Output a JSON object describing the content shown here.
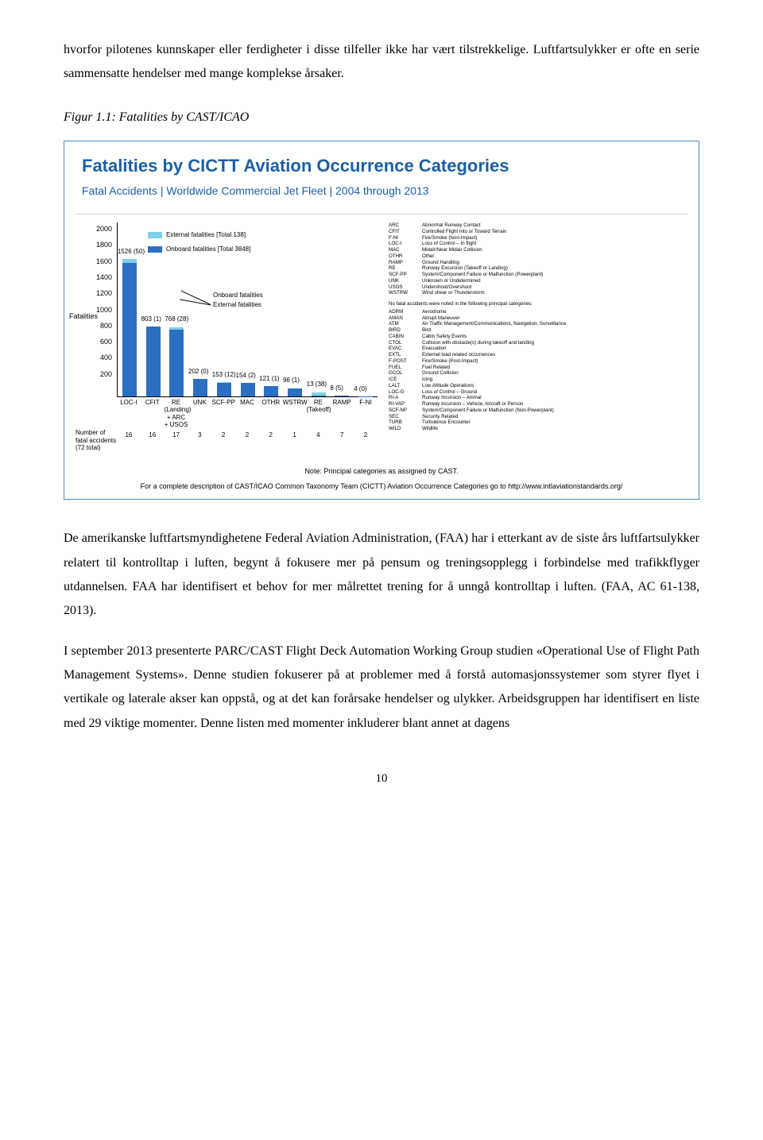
{
  "para1": "hvorfor pilotenes kunnskaper eller ferdigheter i disse tilfeller ikke har vært tilstrekkelige. Luftfartsulykker er ofte en serie sammensatte hendelser med mange komplekse årsaker.",
  "fig_caption": "Figur 1.1: Fatalities by CAST/ICAO",
  "chart": {
    "title": "Fatalities by CICTT Aviation Occurrence Categories",
    "subtitle": "Fatal Accidents | Worldwide Commercial Jet Fleet | 2004 through 2013",
    "ylabel": "Fatalities",
    "ymax": 2000,
    "ytick_step": 200,
    "legend": {
      "ext_label": "External fatalities [Total 138]",
      "onb_label": "Onboard fatalities [Total 3848]",
      "ext_color": "#7fd0e8",
      "onb_color": "#2b6fc2"
    },
    "annotation_onboard": "Onboard fatalities",
    "annotation_external": "External fatalities",
    "categories": [
      {
        "code": "LOC-I",
        "onboard": 1526,
        "external": 50,
        "accidents": 16
      },
      {
        "code": "CFIT",
        "onboard": 803,
        "external": 1,
        "accidents": 16
      },
      {
        "code": "RE\n(Landing)\n+ ARC\n+ USOS",
        "onboard": 768,
        "external": 28,
        "accidents": 17
      },
      {
        "code": "UNK",
        "onboard": 202,
        "external": 0,
        "accidents": 3
      },
      {
        "code": "SCF-PP",
        "onboard": 153,
        "external": 12,
        "accidents": 2
      },
      {
        "code": "MAC",
        "onboard": 154,
        "external": 2,
        "accidents": 2
      },
      {
        "code": "OTHR",
        "onboard": 121,
        "external": 1,
        "accidents": 2
      },
      {
        "code": "WSTRW",
        "onboard": 96,
        "external": 1,
        "accidents": 1
      },
      {
        "code": "RE\n(Takeoff)",
        "onboard": 13,
        "external": 38,
        "accidents": 4
      },
      {
        "code": "RAMP",
        "onboard": 8,
        "external": 5,
        "accidents": 7
      },
      {
        "code": "F-NI",
        "onboard": 4,
        "external": 0,
        "accidents": 2
      }
    ],
    "num_accidents_caption": "Number of\nfatal accidents\n(72 total)",
    "note": "Note: Principal categories as assigned by CAST.",
    "footer": "For a complete description of CAST/ICAO Common Taxonomy Team (CICTT) Aviation Occurrence Categories go to http://www.intlaviationstandards.org/",
    "abbr1": [
      [
        "ARC",
        "Abnormal Runway Contact"
      ],
      [
        "CFIT",
        "Controlled Flight Into or Toward Terrain"
      ],
      [
        "F-NI",
        "Fire/Smoke (Non-Impact)"
      ],
      [
        "LOC-I",
        "Loss of Control – In flight"
      ],
      [
        "MAC",
        "Midair/Near Midair Collision"
      ],
      [
        "OTHR",
        "Other"
      ],
      [
        "RAMP",
        "Ground Handling"
      ],
      [
        "RE",
        "Runway Excursion (Takeoff or Landing)"
      ],
      [
        "SCF-PP",
        "System/Component Failure or Malfunction (Powerplant)"
      ],
      [
        "UNK",
        "Unknown or Undetermined"
      ],
      [
        "USOS",
        "Undershoot/Overshoot"
      ],
      [
        "WSTRW",
        "Wind shear or Thunderstorm"
      ]
    ],
    "abbr2_intro": "No fatal accidents were noted in the following principal categories:",
    "abbr2": [
      [
        "ADRM",
        "Aerodrome"
      ],
      [
        "AMAN",
        "Abrupt Maneuver"
      ],
      [
        "ATM",
        "Air Traffic Management/Communications, Navigation, Surveillance"
      ],
      [
        "BIRD",
        "Bird"
      ],
      [
        "CABIN",
        "Cabin Safety Events"
      ],
      [
        "CTOL",
        "Collision with obstacle(s) during takeoff and landing"
      ],
      [
        "EVAC",
        "Evacuation"
      ],
      [
        "EXTL",
        "External load related occurrences"
      ],
      [
        "F-POST",
        "Fire/Smoke (Post-Impact)"
      ],
      [
        "FUEL",
        "Fuel Related"
      ],
      [
        "GCOL",
        "Ground Collision"
      ],
      [
        "ICE",
        "Icing"
      ],
      [
        "LALT",
        "Low Altitude Operations"
      ],
      [
        "LOC-G",
        "Loss of Control – Ground"
      ],
      [
        "RI-A",
        "Runway Incursion – Animal"
      ],
      [
        "RI-VAP",
        "Runway Incursion – Vehicle, Aircraft or Person"
      ],
      [
        "SCF-NP",
        "System/Component Failure or Malfunction (Non-Powerplant)"
      ],
      [
        "SEC",
        "Security Related"
      ],
      [
        "TURB",
        "Turbulence Encounter"
      ],
      [
        "WILD",
        "Wildlife"
      ]
    ]
  },
  "para2": "De amerikanske luftfartsmyndighetene Federal Aviation Administration, (FAA) har i etterkant av de siste års luftfartsulykker relatert til kontrolltap i luften, begynt å fokusere mer på pensum og treningsopplegg i forbindelse med trafikkflyger utdannelsen. FAA har identifisert et behov for mer målrettet trening for å unngå kontrolltap i luften. (FAA, AC 61-138, 2013).",
  "para3": "I september 2013 presenterte PARC/CAST Flight Deck Automation Working Group studien «Operational Use of Flight Path Management Systems». Denne studien fokuserer på at problemer med å forstå automasjonssystemer som styrer flyet i vertikale og laterale akser kan oppstå, og at det kan forårsake hendelser og ulykker. Arbeidsgruppen har identifisert en liste med 29 viktige momenter. Denne listen med momenter inkluderer blant annet at dagens",
  "page_num": "10"
}
